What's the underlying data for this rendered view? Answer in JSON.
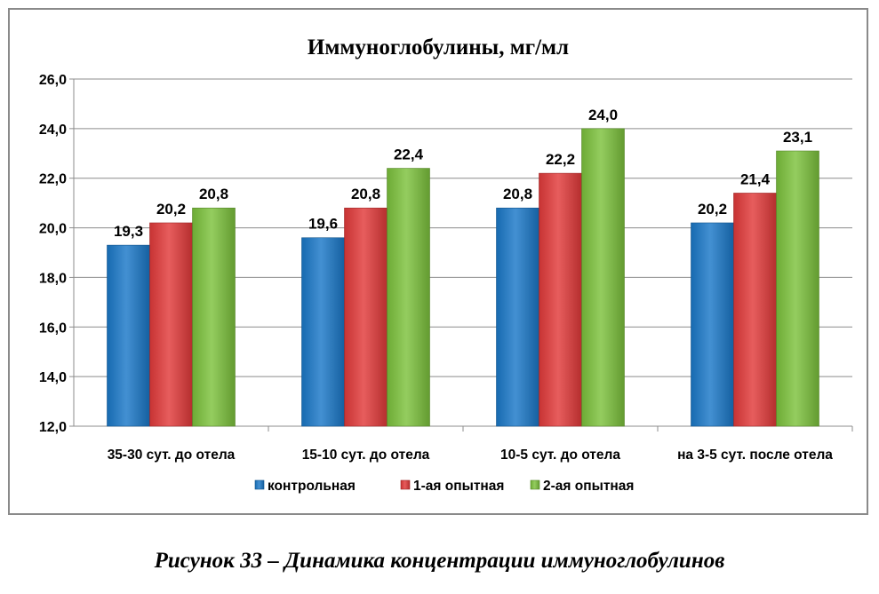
{
  "chart_data": {
    "type": "bar",
    "title": "Иммуноглобулины, мг/мл",
    "categories": [
      "35-30 сут. до отела",
      "15-10 сут. до отела",
      "10-5 сут. до отела",
      "на 3-5 сут. после отела"
    ],
    "series": [
      {
        "name": "контрольная",
        "values": [
          19.3,
          19.6,
          20.8,
          20.2
        ],
        "color": "#1a78c8",
        "labels": [
          "19,3",
          "19,6",
          "20,8",
          "20,2"
        ]
      },
      {
        "name": "1-ая опытная",
        "values": [
          20.2,
          20.8,
          22.2,
          21.4
        ],
        "color": "#e23a3a",
        "labels": [
          "20,2",
          "20,8",
          "22,2",
          "21,4"
        ]
      },
      {
        "name": "2-ая опытная",
        "values": [
          20.8,
          22.4,
          24.0,
          23.1
        ],
        "color": "#7cc23c",
        "labels": [
          "20,8",
          "22,4",
          "24,0",
          "23,1"
        ]
      }
    ],
    "ylim": [
      12,
      26
    ],
    "yticks": [
      12,
      14,
      16,
      18,
      20,
      22,
      24,
      26
    ],
    "ytick_labels": [
      "12,0",
      "14,0",
      "16,0",
      "18,0",
      "20,0",
      "22,0",
      "24,0",
      "26,0"
    ],
    "grid": true,
    "legend_position": "bottom",
    "xlabel": "",
    "ylabel": ""
  },
  "caption": "Рисунок 33 – Динамика концентрации иммуноглобулинов"
}
